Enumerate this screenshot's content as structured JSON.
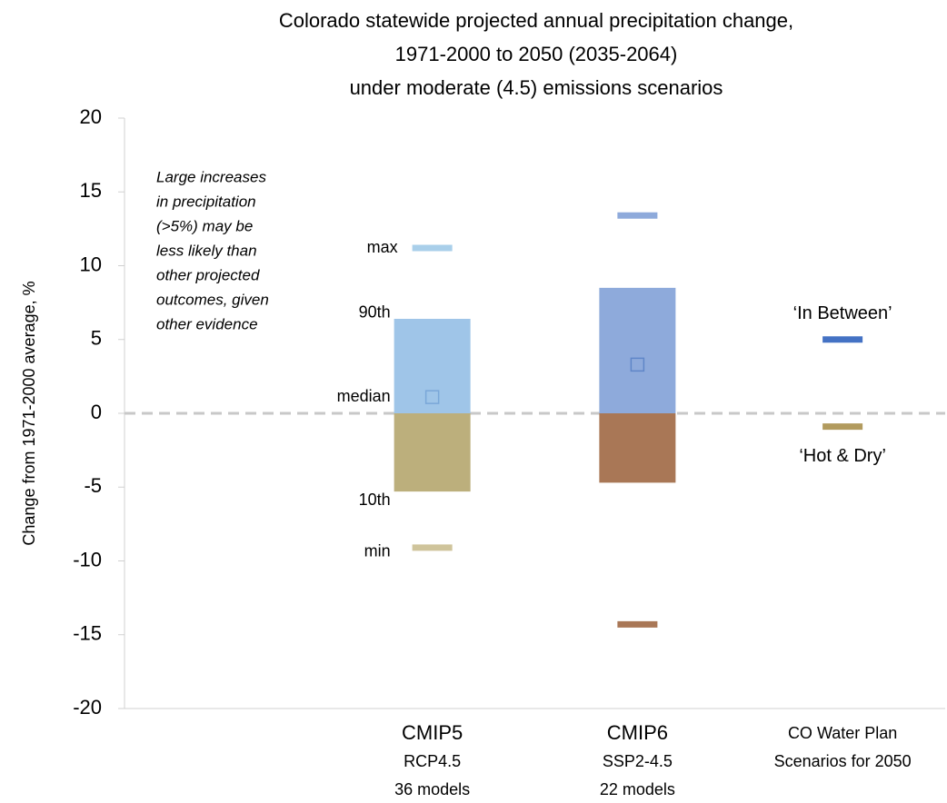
{
  "chart_data": {
    "type": "range",
    "title": [
      "Colorado statewide projected annual precipitation change,",
      "1971-2000 to 2050 (2035-2064)",
      "under moderate (4.5) emissions scenarios"
    ],
    "ylabel": "Change from 1971-2000 average, %",
    "ylim": [
      -20,
      20
    ],
    "yticks": [
      -20,
      -15,
      -10,
      -5,
      0,
      5,
      10,
      15,
      20
    ],
    "zero_line": true,
    "annotation": [
      "Large increases",
      "in precipitation",
      "(>5%) may be",
      "less likely than",
      "other projected",
      "outcomes, given",
      "other evidence"
    ],
    "stat_labels": [
      "max",
      "90th",
      "median",
      "10th",
      "min"
    ],
    "groups": [
      {
        "name": "CMIP5",
        "sublabels": [
          "RCP4.5",
          "36 models"
        ],
        "upper_color": "#9fc5e8",
        "lower_color": "#bcaf7c",
        "max_color": "#a9cfea",
        "min_color": "#cfc49b",
        "median_color": "#7aa7d8",
        "max": 11.2,
        "p90": 6.4,
        "median": 1.1,
        "p10": -5.3,
        "min": -9.1
      },
      {
        "name": "CMIP6",
        "sublabels": [
          "SSP2-4.5",
          "22 models"
        ],
        "upper_color": "#8eaadb",
        "lower_color": "#a97756",
        "max_color": "#8eaadb",
        "min_color": "#a97756",
        "median_color": "#5f86c8",
        "max": 13.4,
        "p90": 8.5,
        "median": 3.3,
        "p10": -4.7,
        "min": -14.3
      }
    ],
    "scenario_group": {
      "label": [
        "CO Water Plan",
        "Scenarios for 2050"
      ],
      "color": "#4472c4",
      "scenarios": [
        {
          "name": "‘In Between’",
          "value": 5,
          "color": "#4472c4",
          "label_color": "#4472c4"
        },
        {
          "name": "‘Hot & Dry’",
          "value": -0.9,
          "color": "#b29b5e",
          "label_color": "#4472c4"
        }
      ]
    }
  }
}
